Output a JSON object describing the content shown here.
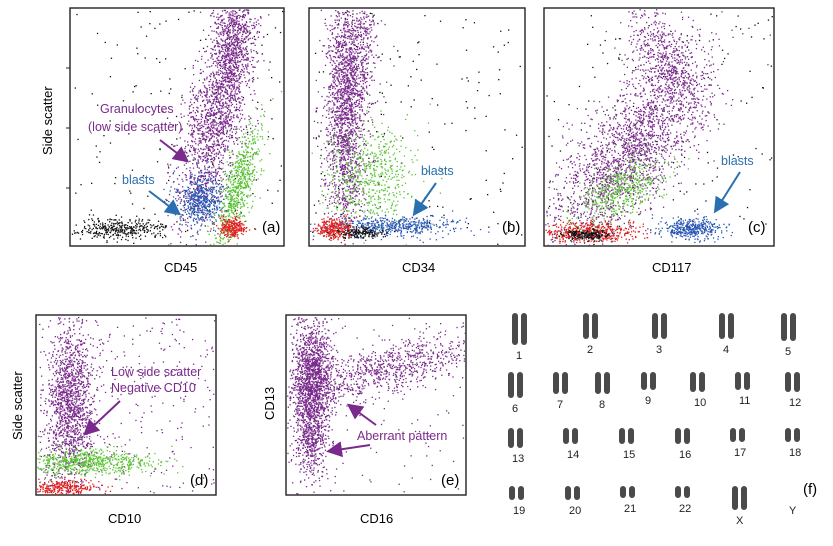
{
  "figure": {
    "panels": [
      {
        "id": "a",
        "label": "(a)",
        "xlabel": "CD45",
        "ylabel": "Side scatter",
        "annotations": [
          {
            "text": "Granulocytes",
            "color": "#7a2a8c"
          },
          {
            "text": "(low side scatter)",
            "color": "#7a2a8c"
          },
          {
            "text": "blasts",
            "color": "#2a6fb0"
          }
        ]
      },
      {
        "id": "b",
        "label": "(b)",
        "xlabel": "CD34",
        "annotations": [
          {
            "text": "blasts",
            "color": "#2a6fb0"
          }
        ]
      },
      {
        "id": "c",
        "label": "(c)",
        "xlabel": "CD117",
        "annotations": [
          {
            "text": "blasts",
            "color": "#2a6fb0"
          }
        ]
      },
      {
        "id": "d",
        "label": "(d)",
        "xlabel": "CD10",
        "ylabel": "Side scatter",
        "annotations": [
          {
            "text": "Low side scatter",
            "color": "#7a2a8c"
          },
          {
            "text": "Negative CD10",
            "color": "#7a2a8c"
          }
        ]
      },
      {
        "id": "e",
        "label": "(e)",
        "xlabel": "CD16",
        "ylabel": "CD13",
        "annotations": [
          {
            "text": "Aberrant pattern",
            "color": "#7a2a8c"
          }
        ]
      },
      {
        "id": "f",
        "label": "(f)",
        "chromosomes": [
          "1",
          "2",
          "3",
          "4",
          "5",
          "6",
          "7",
          "8",
          "9",
          "10",
          "11",
          "12",
          "13",
          "14",
          "15",
          "16",
          "17",
          "18",
          "19",
          "20",
          "21",
          "22",
          "X",
          "Y"
        ]
      }
    ],
    "colors": {
      "granulocytes": "#7a2a8c",
      "blasts": "#2a57b5",
      "lymphocytes_green": "#5bc436",
      "red_population": "#e02020",
      "debris_black": "#111111"
    }
  }
}
